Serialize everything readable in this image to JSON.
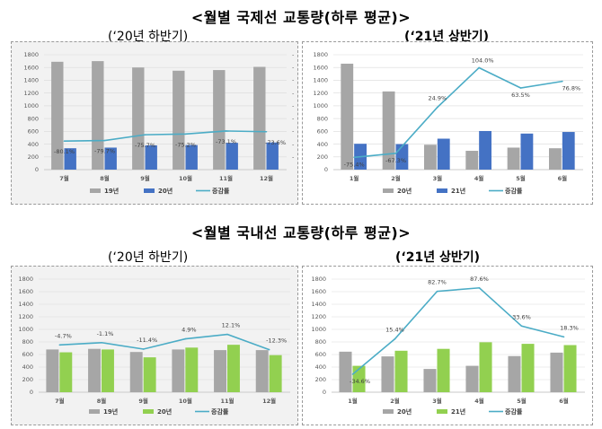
{
  "titles": {
    "international": "<월별 국제선 교통량(하루 평균)>",
    "domestic": "<월별 국내선 교통량(하루 평균)>"
  },
  "subtitles": {
    "h2_2020": "(‘20년 하반기)",
    "h1_2021": "(‘21년 상반기)"
  },
  "chart_data": [
    {
      "type": "bar",
      "section": "international",
      "subtitle": "(‘20년 하반기)",
      "categories": [
        "7월",
        "8월",
        "9월",
        "10월",
        "11월",
        "12월"
      ],
      "series": [
        {
          "name": "19년",
          "kind": "bar",
          "color": "#a6a6a6",
          "values": [
            1690,
            1700,
            1600,
            1550,
            1560,
            1610
          ]
        },
        {
          "name": "20년",
          "kind": "bar",
          "color": "#4472c4",
          "values": [
            335,
            345,
            380,
            385,
            420,
            425
          ]
        },
        {
          "name": "증감률",
          "kind": "line",
          "color": "#4bacc6",
          "values": [
            -80.1,
            -79.7,
            -75.7,
            -75.2,
            -73.1,
            -73.6
          ],
          "labels": [
            "-80.1%",
            "-79.7%",
            "-75.7%",
            "-75.2%",
            "-73.1%",
            "-73.6%"
          ]
        }
      ],
      "ylim": [
        0,
        1800
      ],
      "yticks": [
        "0",
        "200",
        "400",
        "600",
        "800",
        "1000",
        "1200",
        "1400",
        "1600",
        "1800"
      ]
    },
    {
      "type": "bar",
      "section": "international",
      "subtitle": "(‘21년 상반기)",
      "categories": [
        "1월",
        "2월",
        "3월",
        "4월",
        "5월",
        "6월"
      ],
      "series": [
        {
          "name": "20년",
          "kind": "bar",
          "color": "#a6a6a6",
          "values": [
            1660,
            1225,
            390,
            295,
            345,
            335
          ]
        },
        {
          "name": "21년",
          "kind": "bar",
          "color": "#4472c4",
          "values": [
            405,
            400,
            485,
            605,
            565,
            590
          ]
        },
        {
          "name": "증감률",
          "kind": "line",
          "color": "#4bacc6",
          "values": [
            -75.4,
            -67.3,
            24.9,
            104.0,
            63.5,
            76.8
          ],
          "labels": [
            "-75.4%",
            "-67.3%",
            "24.9%",
            "104.0%",
            "63.5%",
            "76.8%"
          ]
        }
      ],
      "ylim": [
        0,
        1800
      ],
      "yticks": [
        "0",
        "200",
        "400",
        "600",
        "800",
        "1000",
        "1200",
        "1400",
        "1600",
        "1800"
      ]
    },
    {
      "type": "bar",
      "section": "domestic",
      "subtitle": "(‘20년 하반기)",
      "categories": [
        "7월",
        "8월",
        "9월",
        "10월",
        "11월",
        "12월"
      ],
      "series": [
        {
          "name": "19년",
          "kind": "bar",
          "color": "#a6a6a6",
          "values": [
            680,
            690,
            640,
            680,
            670,
            670
          ]
        },
        {
          "name": "20년",
          "kind": "bar",
          "color": "#92d050",
          "values": [
            635,
            680,
            555,
            710,
            755,
            590
          ]
        },
        {
          "name": "증감률",
          "kind": "line",
          "color": "#4bacc6",
          "values": [
            -4.7,
            -1.1,
            -11.4,
            4.9,
            12.1,
            -12.3
          ],
          "labels": [
            "-4.7%",
            "-1.1%",
            "-11.4%",
            "4.9%",
            "12.1%",
            "-12.3%"
          ]
        }
      ],
      "ylim": [
        0,
        1800
      ],
      "yticks": [
        "0",
        "200",
        "400",
        "600",
        "800",
        "1000",
        "1200",
        "1400",
        "1600",
        "1800"
      ]
    },
    {
      "type": "bar",
      "section": "domestic",
      "subtitle": "(‘21년 상반기)",
      "categories": [
        "1월",
        "2월",
        "3월",
        "4월",
        "5월",
        "6월"
      ],
      "series": [
        {
          "name": "20년",
          "kind": "bar",
          "color": "#a6a6a6",
          "values": [
            645,
            570,
            370,
            420,
            575,
            630
          ]
        },
        {
          "name": "21년",
          "kind": "bar",
          "color": "#92d050",
          "values": [
            420,
            660,
            690,
            795,
            770,
            750
          ]
        },
        {
          "name": "증감률",
          "kind": "line",
          "color": "#4bacc6",
          "values": [
            -34.6,
            15.4,
            82.7,
            87.6,
            33.6,
            18.3
          ],
          "labels": [
            "-34.6%",
            "15.4%",
            "82.7%",
            "87.6%",
            "33.6%",
            "18.3%"
          ]
        }
      ],
      "ylim": [
        0,
        1800
      ],
      "yticks": [
        "0",
        "200",
        "400",
        "600",
        "800",
        "1000",
        "1200",
        "1400",
        "1600",
        "1800"
      ]
    }
  ]
}
